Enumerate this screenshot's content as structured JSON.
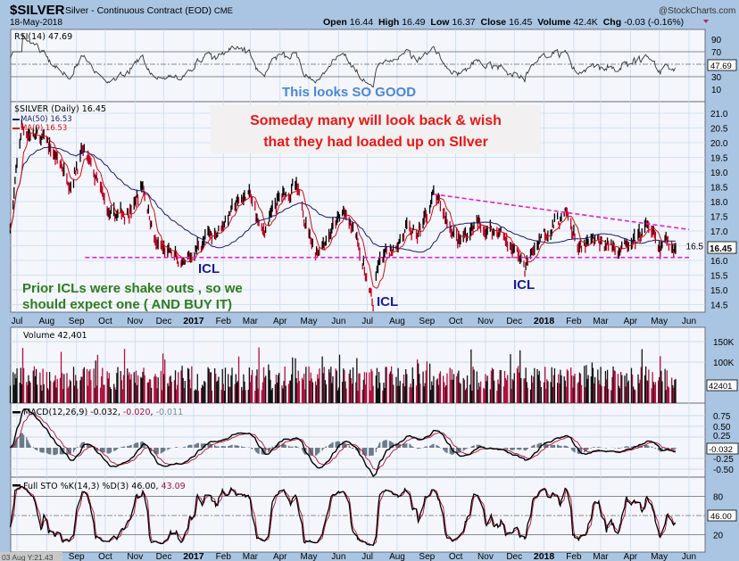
{
  "header": {
    "symbol": "$SILVER",
    "name": "Silver - Continuous Contract (EOD)",
    "exchange": "CME",
    "brand": "@StockCharts.com",
    "date": "18-May-2018",
    "open_label": "Open",
    "open": "16.44",
    "high_label": "High",
    "high": "16.49",
    "low_label": "Low",
    "low": "16.37",
    "close_label": "Close",
    "close": "16.45",
    "volume_label": "Volume",
    "volume": "42.4K",
    "chg_label": "Chg",
    "chg": "-0.03 (-0.16%)"
  },
  "colors": {
    "background": "#a9c5e2",
    "panel": "#f4f6fb",
    "grid": "#c9dbee",
    "up": "#000000",
    "down": "#c00020",
    "ma50": "#1a1a6e",
    "ma9": "#d01010",
    "trendline": "#e020d0",
    "annotation_red": "#e81818",
    "annotation_blue": "#4a86d8",
    "annotation_green": "#2e7d1e",
    "annotation_navy": "#1a1aa0"
  },
  "chart_data": {
    "type": "line",
    "title": "$SILVER (Daily) 16.45",
    "series": [
      {
        "name": "$SILVER (Daily)",
        "last": 16.45,
        "points": [
          [
            "2016-06-24",
            17.2
          ],
          [
            "2016-07-06",
            20.5
          ],
          [
            "2016-07-20",
            20.2
          ],
          [
            "2016-08-01",
            20.0
          ],
          [
            "2016-08-26",
            18.7
          ],
          [
            "2016-09-07",
            19.7
          ],
          [
            "2016-09-14",
            19.3
          ],
          [
            "2016-10-07",
            17.4
          ],
          [
            "2016-10-30",
            17.8
          ],
          [
            "2016-11-09",
            18.6
          ],
          [
            "2016-11-23",
            16.5
          ],
          [
            "2016-12-16",
            16.0
          ],
          [
            "2016-12-22",
            15.7
          ],
          [
            "2017-01-05",
            16.5
          ],
          [
            "2017-01-25",
            17.0
          ],
          [
            "2017-02-15",
            17.9
          ],
          [
            "2017-02-27",
            18.3
          ],
          [
            "2017-03-14",
            16.9
          ],
          [
            "2017-03-31",
            18.1
          ],
          [
            "2017-04-17",
            18.5
          ],
          [
            "2017-05-08",
            16.3
          ],
          [
            "2017-05-22",
            16.9
          ],
          [
            "2017-06-06",
            17.6
          ],
          [
            "2017-06-21",
            16.7
          ],
          [
            "2017-07-07",
            14.4
          ],
          [
            "2017-07-12",
            15.8
          ],
          [
            "2017-07-31",
            16.6
          ],
          [
            "2017-08-10",
            17.0
          ],
          [
            "2017-08-22",
            16.8
          ],
          [
            "2017-09-08",
            18.2
          ],
          [
            "2017-09-20",
            17.5
          ],
          [
            "2017-10-05",
            16.6
          ],
          [
            "2017-10-20",
            17.2
          ],
          [
            "2017-11-15",
            17.0
          ],
          [
            "2017-12-05",
            16.2
          ],
          [
            "2017-12-12",
            15.7
          ],
          [
            "2017-12-29",
            16.9
          ],
          [
            "2018-01-10",
            17.2
          ],
          [
            "2018-01-25",
            17.5
          ],
          [
            "2018-02-08",
            16.3
          ],
          [
            "2018-02-20",
            16.6
          ],
          [
            "2018-03-15",
            16.5
          ],
          [
            "2018-04-02",
            16.4
          ],
          [
            "2018-04-19",
            17.2
          ],
          [
            "2018-05-02",
            16.3
          ],
          [
            "2018-05-10",
            16.7
          ],
          [
            "2018-05-18",
            16.45
          ]
        ]
      },
      {
        "name": "MA(50)",
        "last": 16.53
      },
      {
        "name": "MA(9)",
        "last": 16.53
      }
    ],
    "yticks": [
      "21.0",
      "20.5",
      "20.0",
      "19.5",
      "19.0",
      "18.5",
      "18.0",
      "17.5",
      "17.0",
      "16.5",
      "16.0",
      "15.5",
      "15.0",
      "14.5"
    ],
    "ylim": [
      14.3,
      21.2
    ],
    "xticks": [
      "Jul",
      "Aug",
      "Sep",
      "Oct",
      "Nov",
      "Dec",
      "2017",
      "Feb",
      "Mar",
      "Apr",
      "May",
      "Jun",
      "Jul",
      "Aug",
      "Sep",
      "Oct",
      "Nov",
      "Dec",
      "2018",
      "Feb",
      "Mar",
      "Apr",
      "May",
      "Jun"
    ],
    "trendlines": [
      {
        "type": "support",
        "price": 16.1,
        "from": "2016-09-10",
        "to": "2018-06-01"
      },
      {
        "type": "resistance",
        "from": [
          "2017-09-08",
          18.25
        ],
        "to": [
          "2018-06-01",
          17.05
        ]
      }
    ],
    "indicators": {
      "rsi": {
        "label": "RSI(14) 47.69",
        "value": "47.69",
        "ticks": [
          "90",
          "70",
          "30",
          "10"
        ],
        "ylim": [
          0,
          100
        ]
      },
      "volume": {
        "label": "Volume 42,401",
        "value": "42401",
        "ticks": [
          "150K",
          "100K"
        ]
      },
      "macd": {
        "label": "MACD(12,26,9)",
        "macd": "-0.032",
        "signal": "-0.020",
        "hist": "-0.011",
        "value": "-0.032",
        "ticks": [
          "0.75",
          "0.50",
          "0.25",
          "-0.25",
          "-0.50"
        ]
      },
      "sto": {
        "label": "Full STO %K(14,3) %D(3)",
        "k": "46.00",
        "d": "43.09",
        "value": "46.00",
        "ticks": [
          "80",
          "20"
        ]
      }
    }
  },
  "annotations": {
    "rsi_note": "This looks SO GOOD",
    "callout_line1": "Someday many will look back & wish",
    "callout_line2": "that they had loaded up on SIlver",
    "icl1": "ICL",
    "icl2": "ICL",
    "icl3": "ICL",
    "prior_line1": "Prior ICLs were shake outs , so we",
    "prior_line2": "should expect one ( AND BUY IT)"
  },
  "cursor_readout": "03 Aug Y:21.43"
}
